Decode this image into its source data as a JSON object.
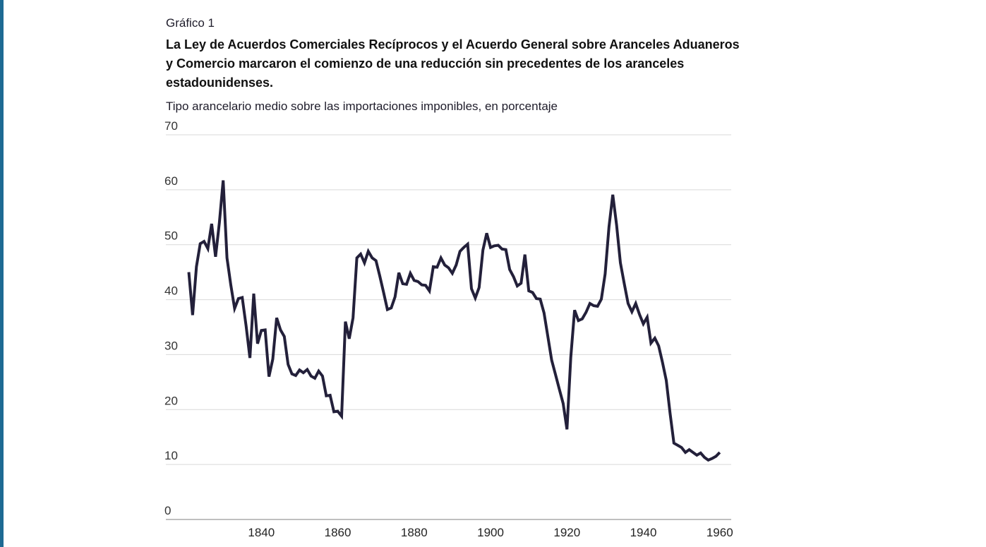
{
  "header": {
    "kicker": "Gráfico 1",
    "title": "La Ley de Acuerdos Comerciales Recíprocos y el Acuerdo General sobre Aranceles Aduaneros y Comercio marcaron el comienzo de una reducción sin precedentes de los aranceles estadounidenses.",
    "subtitle": "Tipo arancelario medio sobre las importaciones imponibles, en porcentaje"
  },
  "colors": {
    "line": "#23203a",
    "grid": "#d9d9d9",
    "accent_bar": "#1e6a93"
  },
  "chart_data": {
    "type": "line",
    "title": "",
    "xlabel": "",
    "ylabel": "Tipo arancelario medio sobre las importaciones imponibles, en porcentaje",
    "xlim": [
      1815,
      1963
    ],
    "ylim": [
      0,
      70
    ],
    "yticks": [
      0,
      10,
      20,
      30,
      40,
      50,
      60,
      70
    ],
    "xticks": [
      1840,
      1860,
      1880,
      1900,
      1920,
      1940,
      1960
    ],
    "grid": true,
    "legend": "none",
    "series": [
      {
        "name": "",
        "x": [
          1821,
          1822,
          1823,
          1824,
          1825,
          1826,
          1827,
          1828,
          1829,
          1830,
          1831,
          1832,
          1833,
          1834,
          1835,
          1836,
          1837,
          1838,
          1839,
          1840,
          1841,
          1842,
          1843,
          1844,
          1845,
          1846,
          1847,
          1848,
          1849,
          1850,
          1851,
          1852,
          1853,
          1854,
          1855,
          1856,
          1857,
          1858,
          1859,
          1860,
          1861,
          1862,
          1863,
          1864,
          1865,
          1866,
          1867,
          1868,
          1869,
          1870,
          1871,
          1872,
          1873,
          1874,
          1875,
          1876,
          1877,
          1878,
          1879,
          1880,
          1881,
          1882,
          1883,
          1884,
          1885,
          1886,
          1887,
          1888,
          1889,
          1890,
          1891,
          1892,
          1893,
          1894,
          1895,
          1896,
          1897,
          1898,
          1899,
          1900,
          1901,
          1902,
          1903,
          1904,
          1905,
          1906,
          1907,
          1908,
          1909,
          1910,
          1911,
          1912,
          1913,
          1914,
          1915,
          1916,
          1917,
          1918,
          1919,
          1920,
          1921,
          1922,
          1923,
          1924,
          1925,
          1926,
          1927,
          1928,
          1929,
          1930,
          1931,
          1932,
          1933,
          1934,
          1935,
          1936,
          1937,
          1938,
          1939,
          1940,
          1941,
          1942,
          1943,
          1944,
          1945,
          1946,
          1947,
          1948,
          1949,
          1950,
          1951,
          1952,
          1953,
          1954,
          1955,
          1956,
          1957,
          1958,
          1959,
          1960
        ],
        "values": [
          45.0,
          37.2,
          46.0,
          50.2,
          50.6,
          49.3,
          53.8,
          47.8,
          54.0,
          61.7,
          47.6,
          42.7,
          38.4,
          40.2,
          40.4,
          35.2,
          29.4,
          41.1,
          32.0,
          34.4,
          34.5,
          26.0,
          29.2,
          36.7,
          34.5,
          33.3,
          28.2,
          26.5,
          26.2,
          27.2,
          26.7,
          27.3,
          26.1,
          25.7,
          27.0,
          26.1,
          22.5,
          22.6,
          19.6,
          19.7,
          18.8,
          36.0,
          32.9,
          36.7,
          47.6,
          48.3,
          46.7,
          48.8,
          47.6,
          47.1,
          44.3,
          41.3,
          38.2,
          38.5,
          40.5,
          44.9,
          42.9,
          42.8,
          44.8,
          43.5,
          43.3,
          42.7,
          42.6,
          41.6,
          46.0,
          45.9,
          47.6,
          46.3,
          45.8,
          44.8,
          46.3,
          48.8,
          49.5,
          50.1,
          42.0,
          40.3,
          42.2,
          49.0,
          52.1,
          49.5,
          49.8,
          49.9,
          49.2,
          49.1,
          45.5,
          44.2,
          42.5,
          43.0,
          48.2,
          41.6,
          41.3,
          40.2,
          40.1,
          37.6,
          33.3,
          29.0,
          26.4,
          23.7,
          21.1,
          16.4,
          29.5,
          38.1,
          36.2,
          36.5,
          37.7,
          39.3,
          38.9,
          38.8,
          40.1,
          44.7,
          53.2,
          59.1,
          53.6,
          46.7,
          42.9,
          39.3,
          37.8,
          39.3,
          37.3,
          35.6,
          36.8,
          32.1,
          33.0,
          31.6,
          28.6,
          25.3,
          19.3,
          13.9,
          13.5,
          13.1,
          12.2,
          12.7,
          12.2,
          11.7,
          12.1,
          11.3,
          10.8,
          11.1,
          11.5,
          12.2
        ]
      }
    ]
  },
  "source": {
    "text": ""
  }
}
